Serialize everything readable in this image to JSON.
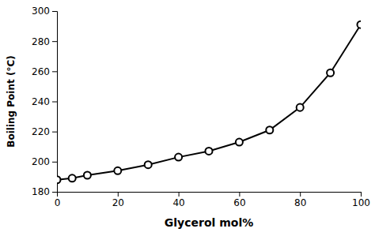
{
  "chart_data": {
    "type": "line",
    "x": [
      0,
      5,
      10,
      20,
      30,
      40,
      50,
      60,
      70,
      80,
      90,
      100
    ],
    "values": [
      188,
      189,
      191,
      194,
      198,
      203,
      207,
      213,
      221,
      236,
      259,
      291
    ],
    "xlabel": "Glycerol mol%",
    "ylabel": "Boiling Point (°C)",
    "xlim": [
      0,
      100
    ],
    "ylim": [
      180,
      300
    ],
    "xticks": [
      0,
      20,
      40,
      60,
      80,
      100
    ],
    "yticks": [
      180,
      200,
      220,
      240,
      260,
      280,
      300
    ],
    "color": "#000000",
    "marker": "circle",
    "grid": false
  }
}
